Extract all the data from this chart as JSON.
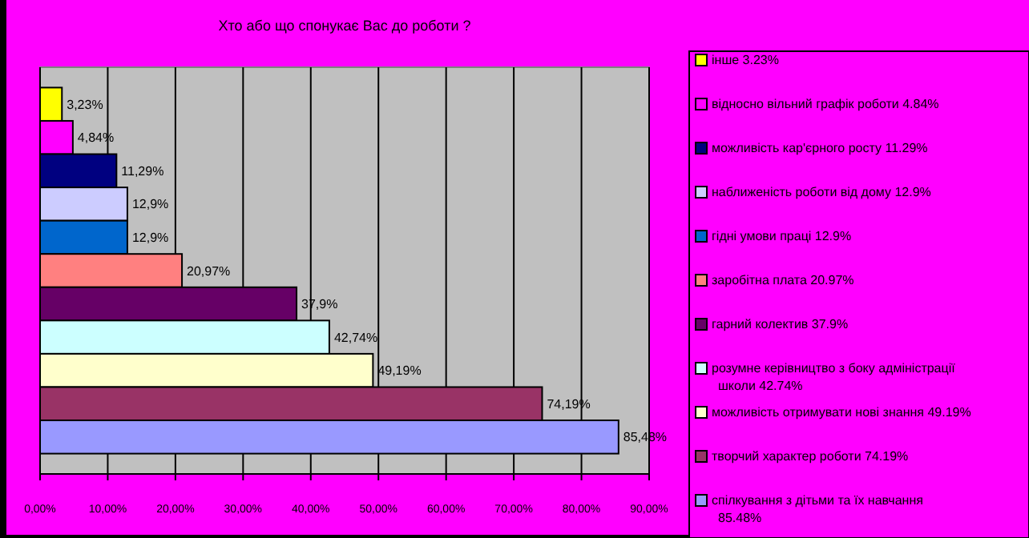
{
  "chart_data": {
    "type": "bar",
    "title": "Хто або що спонукає Вас до роботи ?",
    "orientation": "horizontal",
    "categories": [
      null
    ],
    "xlim": [
      0,
      90
    ],
    "xticks": [
      {
        "value": 0,
        "label": "0,00%"
      },
      {
        "value": 10,
        "label": "10,00%"
      },
      {
        "value": 20,
        "label": "20,00%"
      },
      {
        "value": 30,
        "label": "30,00%"
      },
      {
        "value": 40,
        "label": "40,00%"
      },
      {
        "value": 50,
        "label": "50,00%"
      },
      {
        "value": 60,
        "label": "60,00%"
      },
      {
        "value": 70,
        "label": "70,00%"
      },
      {
        "value": 80,
        "label": "80,00%"
      },
      {
        "value": 90,
        "label": "90,00%"
      }
    ],
    "grid": "x",
    "legend": "right",
    "series": [
      {
        "name": "інше 3.23%",
        "color": "#ffff00",
        "values": [
          3.23
        ],
        "value_labels": [
          "3,23%"
        ]
      },
      {
        "name": "відносно вільний графік роботи 4.84%",
        "color": "#ff00ff",
        "values": [
          4.84
        ],
        "value_labels": [
          "4,84%"
        ]
      },
      {
        "name": "можливість кар'єрного росту 11.29%",
        "color": "#000080",
        "values": [
          11.29
        ],
        "value_labels": [
          "11,29%"
        ]
      },
      {
        "name": "наближеність роботи від дому 12.9%",
        "color": "#ccccff",
        "values": [
          12.9
        ],
        "value_labels": [
          "12,9%"
        ]
      },
      {
        "name": "гідні умови праці 12.9%",
        "color": "#0066cc",
        "values": [
          12.9
        ],
        "value_labels": [
          "12,9%"
        ]
      },
      {
        "name": "заробітна плата 20.97%",
        "color": "#ff8080",
        "values": [
          20.97
        ],
        "value_labels": [
          "20,97%"
        ]
      },
      {
        "name": "гарний колектив 37.9%",
        "color": "#660066",
        "values": [
          37.9
        ],
        "value_labels": [
          "37,9%"
        ]
      },
      {
        "name": "розумне керівництво з боку адміністрації школи 42.74%",
        "color": "#ccffff",
        "values": [
          42.74
        ],
        "value_labels": [
          "42,74%"
        ]
      },
      {
        "name": "можливість отримувати нові знання 49.19%",
        "color": "#ffffcc",
        "values": [
          49.19
        ],
        "value_labels": [
          "49,19%"
        ]
      },
      {
        "name": "творчий характер роботи 74.19%",
        "color": "#993366",
        "values": [
          74.19
        ],
        "value_labels": [
          "74,19%"
        ]
      },
      {
        "name": "спілкування з дітьми та їх навчання 85.48%",
        "color": "#9999ff",
        "values": [
          85.48
        ],
        "value_labels": [
          "85,48%"
        ]
      }
    ]
  }
}
